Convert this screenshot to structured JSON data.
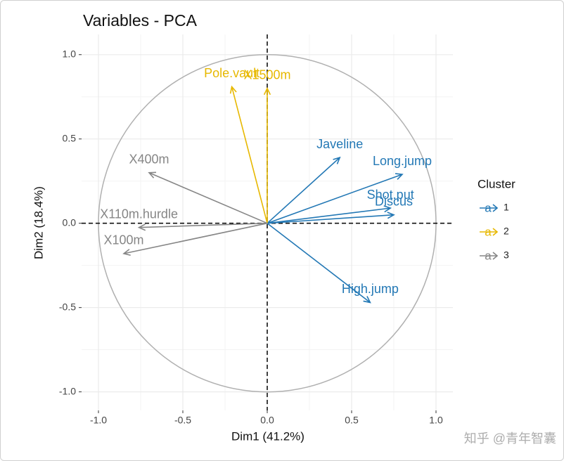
{
  "chart_data": {
    "type": "vector",
    "title": "Variables - PCA",
    "x_label": "Dim1 (41.2%)",
    "y_label": "Dim2 (18.4%)",
    "xlim": [
      -1.1,
      1.1
    ],
    "ylim": [
      -1.11,
      1.12
    ],
    "xticks": [
      {
        "value": -1,
        "label": "-1.0"
      },
      {
        "value": -0.5,
        "label": "-0.5"
      },
      {
        "value": 0,
        "label": "0.0"
      },
      {
        "value": 0.5,
        "label": "0.5"
      },
      {
        "value": 1,
        "label": "1.0"
      }
    ],
    "yticks": [
      {
        "value": -1,
        "label": "-1.0"
      },
      {
        "value": -0.5,
        "label": "-0.5"
      },
      {
        "value": 0,
        "label": "0.0"
      },
      {
        "value": 0.5,
        "label": "0.5"
      },
      {
        "value": 1,
        "label": "1.0"
      }
    ],
    "grid": true,
    "legend_title": "Cluster",
    "legend_key_text": "a",
    "series": [
      {
        "name": "1",
        "color": "#2378b5",
        "labels": [
          "Javeline",
          "Long.jump",
          "Shot.put",
          "Discus",
          "High.jump"
        ],
        "x": [
          0.43,
          0.8,
          0.73,
          0.75,
          0.61
        ],
        "values": [
          0.39,
          0.29,
          0.09,
          0.05,
          -0.47
        ]
      },
      {
        "name": "2",
        "color": "#e7b800",
        "labels": [
          "Pole.vault",
          "X1500m"
        ],
        "x": [
          -0.21,
          0.0
        ],
        "values": [
          0.81,
          0.8
        ]
      },
      {
        "name": "3",
        "color": "#868686",
        "labels": [
          "X400m",
          "X110m.hurdle",
          "X100m"
        ],
        "x": [
          -0.7,
          -0.76,
          -0.85
        ],
        "values": [
          0.3,
          -0.025,
          -0.18
        ]
      }
    ]
  },
  "watermark": "知乎 @青年智囊"
}
